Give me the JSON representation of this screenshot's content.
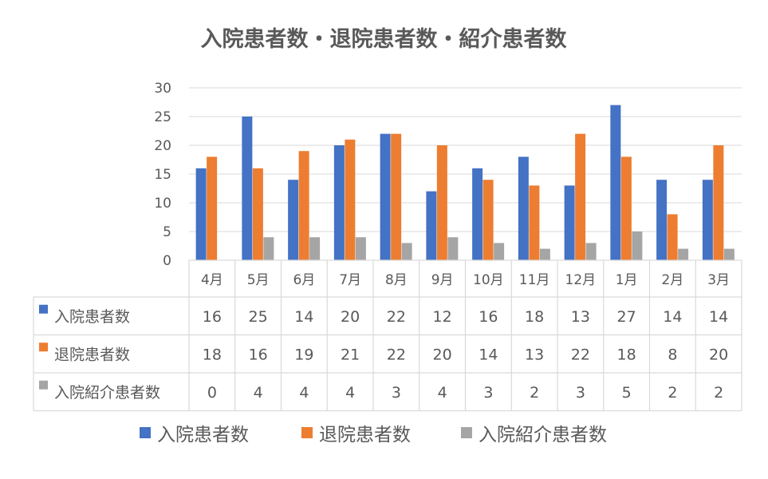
{
  "chart_data": {
    "type": "bar",
    "title": "入院患者数・退院患者数・紹介患者数",
    "categories": [
      "4月",
      "5月",
      "6月",
      "7月",
      "8月",
      "9月",
      "10月",
      "11月",
      "12月",
      "1月",
      "2月",
      "3月"
    ],
    "series": [
      {
        "name": "入院患者数",
        "color": "#4472C4",
        "values": [
          16,
          25,
          14,
          20,
          22,
          12,
          16,
          18,
          13,
          27,
          14,
          14
        ]
      },
      {
        "name": "退院患者数",
        "color": "#ED7D31",
        "values": [
          18,
          16,
          19,
          21,
          22,
          20,
          14,
          13,
          22,
          18,
          8,
          20
        ]
      },
      {
        "name": "入院紹介患者数",
        "color": "#A5A5A5",
        "values": [
          0,
          4,
          4,
          4,
          3,
          4,
          3,
          2,
          3,
          5,
          2,
          2
        ]
      }
    ],
    "ylim": [
      0,
      30
    ],
    "yticks": [
      0,
      5,
      10,
      15,
      20,
      25,
      30
    ],
    "grid": true,
    "legend_position": "bottom",
    "data_table": true
  }
}
